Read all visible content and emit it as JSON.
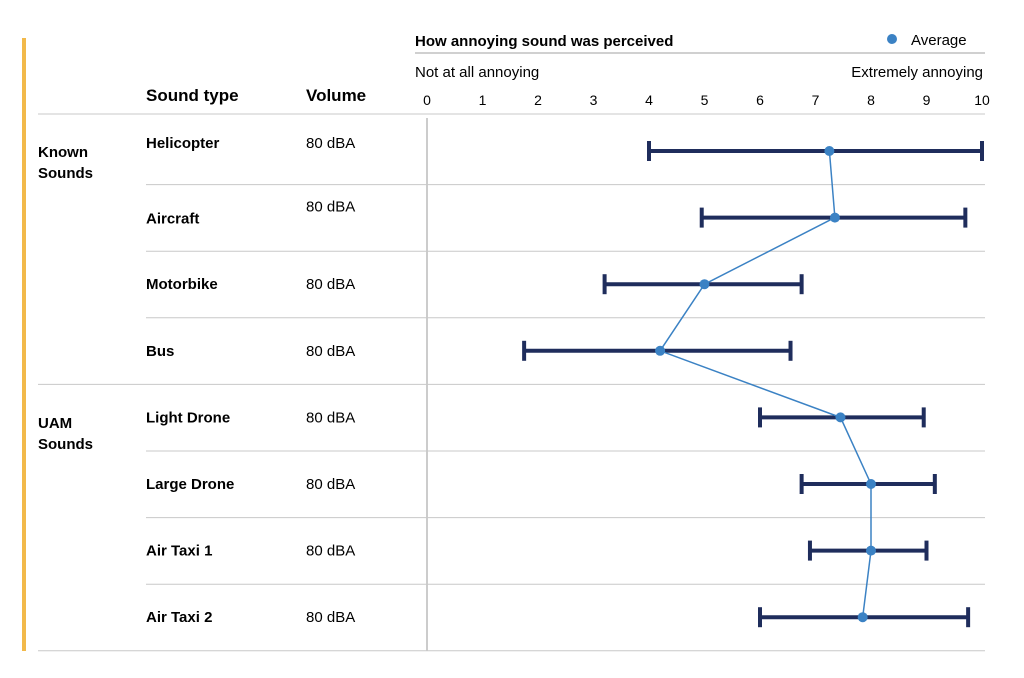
{
  "chart_data": {
    "type": "errorbar",
    "title": "How annoying sound was perceived",
    "scale_low_label": "Not at all annoying",
    "scale_high_label": "Extremely annoying",
    "columns": {
      "sound_type": "Sound type",
      "volume": "Volume"
    },
    "legend": {
      "label": "Average",
      "position": "top-right"
    },
    "xlim": [
      0,
      10
    ],
    "ticks": [
      "0",
      "1",
      "2",
      "3",
      "4",
      "5",
      "6",
      "7",
      "8",
      "9",
      "10"
    ],
    "groups": [
      {
        "label_line1": "Known",
        "label_line2": "Sounds"
      },
      {
        "label_line1": "UAM",
        "label_line2": "Sounds"
      }
    ],
    "rows": [
      {
        "name": "Helicopter",
        "volume": "80 dBA",
        "group": 0,
        "min": 4.0,
        "avg": 7.25,
        "max": 10.0
      },
      {
        "name": "Aircraft",
        "volume": "80 dBA",
        "group": 0,
        "min": 4.95,
        "avg": 7.35,
        "max": 9.7
      },
      {
        "name": "Motorbike",
        "volume": "80 dBA",
        "group": 0,
        "min": 3.2,
        "avg": 5.0,
        "max": 6.75
      },
      {
        "name": "Bus",
        "volume": "80 dBA",
        "group": 0,
        "min": 1.75,
        "avg": 4.2,
        "max": 6.55
      },
      {
        "name": "Light Drone",
        "volume": "80 dBA",
        "group": 1,
        "min": 6.0,
        "avg": 7.45,
        "max": 8.95
      },
      {
        "name": "Large Drone",
        "volume": "80 dBA",
        "group": 1,
        "min": 6.75,
        "avg": 8.0,
        "max": 9.15
      },
      {
        "name": "Air Taxi 1",
        "volume": "80 dBA",
        "group": 1,
        "min": 6.9,
        "avg": 8.0,
        "max": 9.0
      },
      {
        "name": "Air Taxi 2",
        "volume": "80 dBA",
        "group": 1,
        "min": 6.0,
        "avg": 7.85,
        "max": 9.75
      }
    ],
    "colors": {
      "error_bar": "#1f2d5c",
      "average_point": "#3b82c4",
      "connector_line": "#3b82c4",
      "accent_bar": "#f2b94a",
      "grid": "#c8c8c8"
    }
  }
}
